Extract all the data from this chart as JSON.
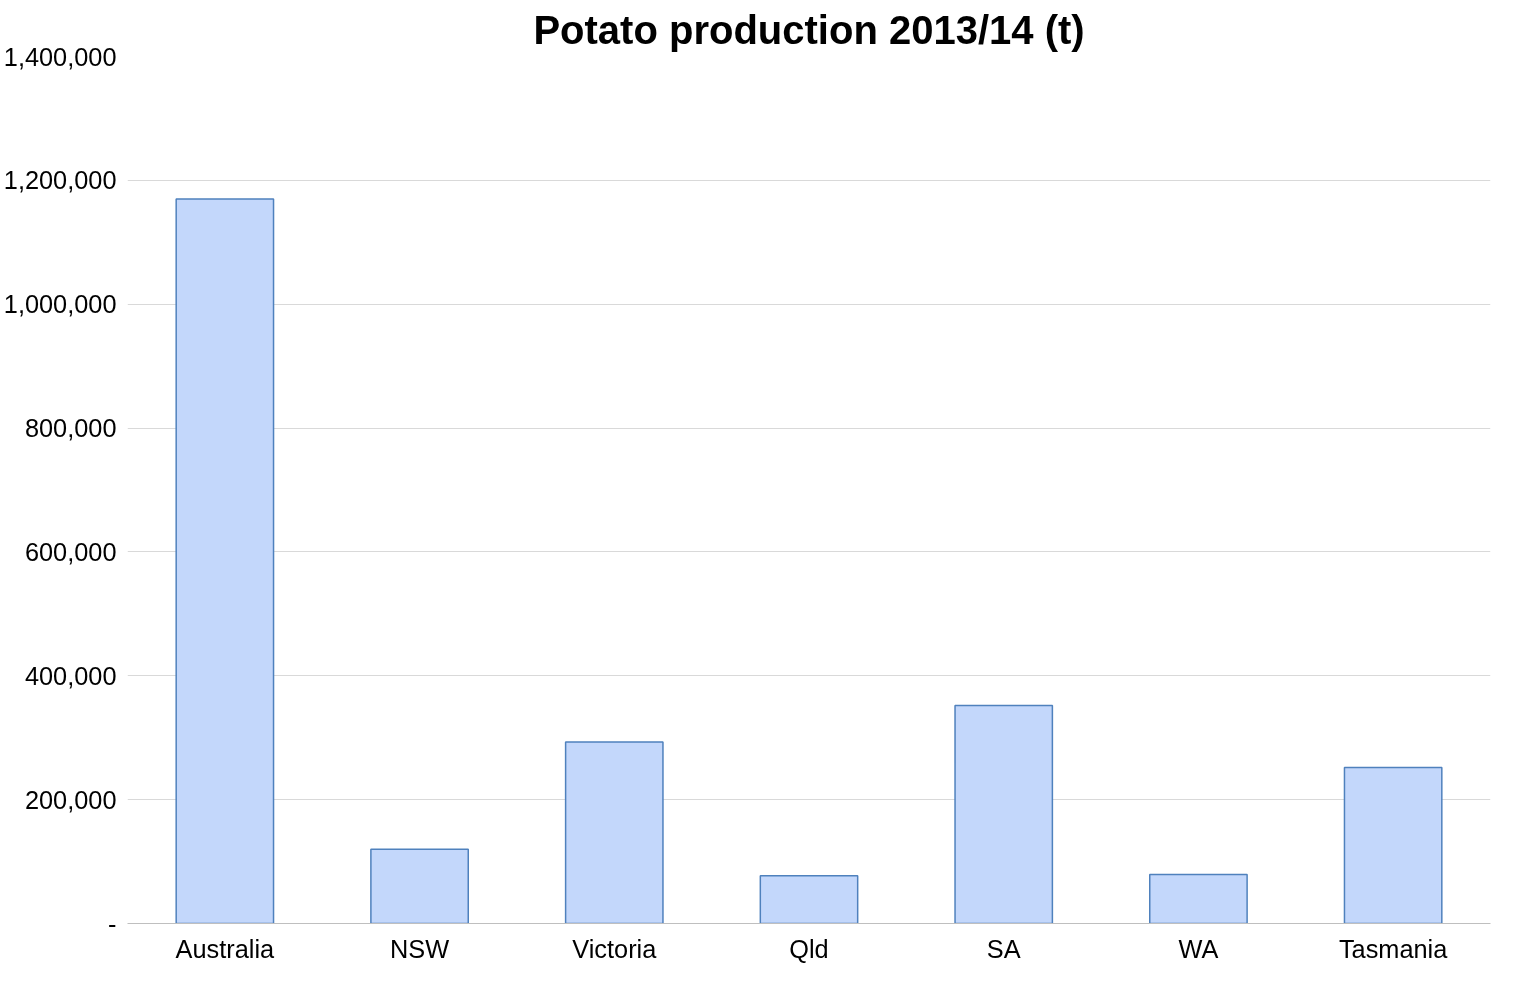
{
  "chart_data": {
    "type": "bar",
    "title": "Potato production 2013/14 (t)",
    "categories": [
      "Australia",
      "NSW",
      "Victoria",
      "Qld",
      "SA",
      "WA",
      "Tasmania"
    ],
    "values": [
      1170000,
      120000,
      293000,
      77000,
      352000,
      79000,
      252000
    ],
    "color": "#c3d7fb",
    "ylim": [
      0,
      1400000
    ],
    "yticks": [
      {
        "value": 0,
        "label": "-"
      },
      {
        "value": 200000,
        "label": "200,000"
      },
      {
        "value": 400000,
        "label": "400,000"
      },
      {
        "value": 600000,
        "label": "600,000"
      },
      {
        "value": 800000,
        "label": "800,000"
      },
      {
        "value": 1000000,
        "label": "1,000,000"
      },
      {
        "value": 1200000,
        "label": "1,200,000"
      },
      {
        "value": 1400000,
        "label": "1,400,000"
      }
    ],
    "grid": "y"
  }
}
